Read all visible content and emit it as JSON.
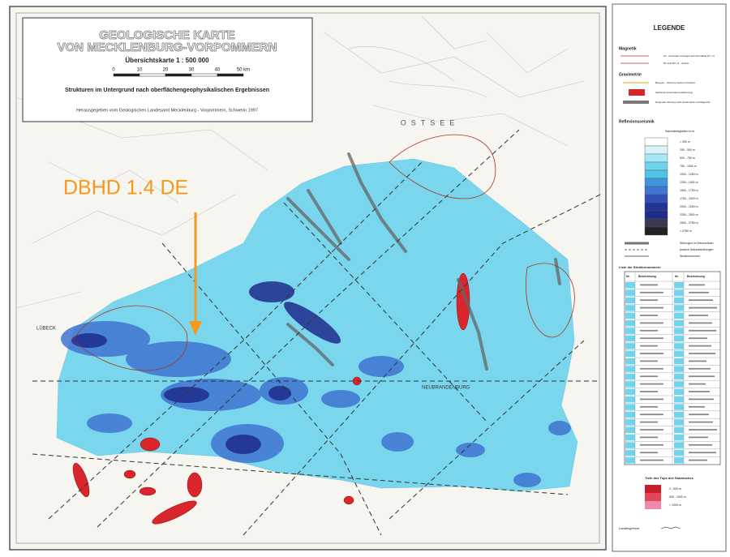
{
  "title_box": {
    "title_lines": [
      "GEOLOGISCHE KARTE",
      "VON MECKLENBURG-VORPOMMERN"
    ],
    "scale_label": "Übersichtskarte   1 : 500 000",
    "scale_ticks": [
      "0",
      "10",
      "20",
      "30",
      "40",
      "50 km"
    ],
    "subtitle": "Strukturen im Untergrund nach oberflächengeophysikalischen Ergebnissen",
    "publisher": "Herausgegeben vom Geologischen Landesamt Mecklenburg - Vorpommern, Schwerin 1997"
  },
  "annotation": {
    "label": "DBHD 1.4 DE"
  },
  "map_labels": {
    "sea": "OSTSEE",
    "cities": [
      "LÜBECK",
      "NEUBRANDENBURG"
    ]
  },
  "legend": {
    "title": "LEGENDE",
    "magnetik": {
      "heading": "Magnetik",
      "items": [
        "ΔT - Anomalien bezogen auf Normalfeld ΔT = 0",
        "50 und 150 nT - Isolinie"
      ]
    },
    "gravimetrie": {
      "heading": "Gravimetrie",
      "items": [
        "Bouguer - Schwere System Potsdam",
        "Salzstock (maximale Ausdehnung)",
        "Regionale Störung nach Gravimetrie und Magnetik"
      ]
    },
    "reflexionsseismik": {
      "heading": "Reflexionsseismik",
      "scale_title": "Salzmächtigkeiten in m",
      "classes": [
        "< 250 m",
        "250 - 500 m",
        "500 - 750 m",
        "750 - 1000 m",
        "1000 - 1250 m",
        "1250 - 1500 m",
        "1500 - 1750 m",
        "1750 - 2000 m",
        "2000 - 2250 m",
        "2250 - 2500 m",
        "2500 - 2750 m",
        "> 2750 m"
      ]
    },
    "lines": [
      "Störungen im Mesozoikum",
      "passive Salzaufwölbungen",
      "Strukturnummer"
    ],
    "table": {
      "title": "Liste der Strukturnummern",
      "headers": [
        "Nr.",
        "Bezeichnung",
        "Nr.",
        "Bezeichnung"
      ]
    },
    "salt_tops": {
      "title": "Tiefe des Tops des Salzstockes",
      "classes": [
        "0 - 500 m",
        "500 - 1000 m",
        "> 1000 m"
      ]
    },
    "border": "Landesgrenze"
  }
}
